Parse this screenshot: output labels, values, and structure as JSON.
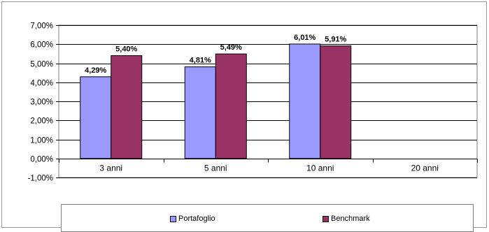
{
  "chart_data": {
    "type": "bar",
    "categories": [
      "3 anni",
      "5 anni",
      "10 anni",
      "20 anni"
    ],
    "series": [
      {
        "name": "Portafoglio",
        "values": [
          4.29,
          4.81,
          6.01,
          null
        ],
        "labels": [
          "4,29%",
          "4,81%",
          "6,01%",
          ""
        ],
        "color": "#9999ff"
      },
      {
        "name": "Benchmark",
        "values": [
          5.4,
          5.49,
          5.91,
          null
        ],
        "labels": [
          "5,40%",
          "5,49%",
          "5,91%",
          ""
        ],
        "color": "#993366"
      }
    ],
    "yticks": [
      "7,00%",
      "6,00%",
      "5,00%",
      "4,00%",
      "3,00%",
      "2,00%",
      "1,00%",
      "0,00%",
      "-1,00%"
    ],
    "ylim": [
      -1,
      7
    ],
    "grid": true,
    "legend": "bottom"
  }
}
